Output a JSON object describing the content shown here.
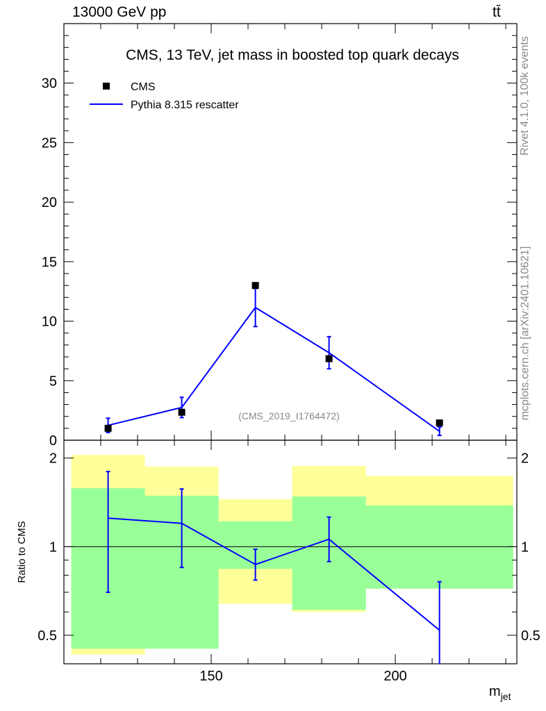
{
  "header": {
    "left": "13000 GeV pp",
    "right": "tt̄"
  },
  "side_labels": {
    "rivet": "Rivet 4.1.0,  100k events",
    "mcplots": "mcplots.cern.ch [arXiv:2401.10621]"
  },
  "colors": {
    "mc_line": "#0000ff",
    "data_marker": "#000000",
    "band_inner": "#99ff99",
    "band_outer": "#ffff99",
    "watermark": "#888888"
  },
  "chart_data": {
    "type": "scatter",
    "title": "CMS, 13 TeV, jet mass in boosted top quark decays",
    "xlabel": "m",
    "xlabel_sub": "jet",
    "ylabel": "",
    "ratio_ylabel": "Ratio to CMS",
    "watermark": "(CMS_2019_I1764472)",
    "xlim": [
      110,
      233
    ],
    "ylim": [
      0,
      35
    ],
    "ratio_ylim": [
      0.4,
      2.3
    ],
    "x_ticks": [
      150,
      200
    ],
    "y_ticks": [
      0,
      5,
      10,
      15,
      20,
      25,
      30
    ],
    "ratio_ticks": [
      0.5,
      1,
      2
    ],
    "legend": [
      "CMS",
      "Pythia 8.315 rescatter"
    ],
    "bins": [
      {
        "lo": 112,
        "hi": 132,
        "x": 122,
        "data": 1.0,
        "data_err": 0.1,
        "mc": 1.25,
        "mc_err": 0.6
      },
      {
        "lo": 132,
        "hi": 152,
        "x": 142,
        "data": 2.35,
        "data_err": 0.2,
        "mc": 2.75,
        "mc_err": 0.85
      },
      {
        "lo": 152,
        "hi": 172,
        "x": 162,
        "data": 13.0,
        "data_err": 0.3,
        "mc": 11.15,
        "mc_err": 1.6
      },
      {
        "lo": 172,
        "hi": 192,
        "x": 182,
        "data": 6.85,
        "data_err": 0.2,
        "mc": 7.35,
        "mc_err": 1.35
      },
      {
        "lo": 192,
        "hi": 232,
        "x": 212,
        "data": 1.45,
        "data_err": 0.1,
        "mc": 0.75,
        "mc_err": 0.35
      }
    ],
    "ratio": {
      "x": [
        122,
        142,
        162,
        182,
        212
      ],
      "values": [
        1.25,
        1.2,
        0.87,
        1.06,
        0.52
      ],
      "err_lo": [
        0.55,
        0.35,
        0.1,
        0.17,
        0.13
      ],
      "err_hi": [
        0.55,
        0.37,
        0.11,
        0.2,
        0.24
      ],
      "band_inner_lo": [
        0.45,
        0.45,
        0.84,
        0.61,
        0.72
      ],
      "band_inner_hi": [
        1.58,
        1.49,
        1.22,
        1.48,
        1.38
      ],
      "band_outer_lo": [
        0.43,
        0.6,
        0.64,
        0.6,
        0.72
      ],
      "band_outer_hi": [
        2.05,
        1.87,
        1.45,
        1.88,
        1.74
      ]
    }
  }
}
